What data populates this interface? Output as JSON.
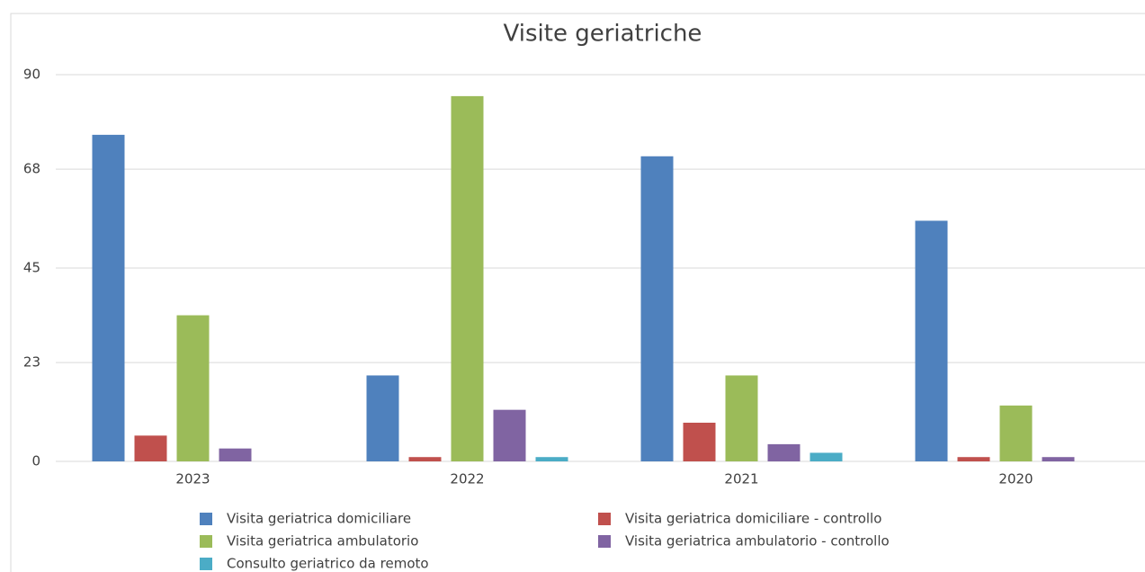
{
  "chart_data": {
    "type": "bar",
    "title": "Visite geriatriche",
    "categories": [
      "2023",
      "2022",
      "2021",
      "2020"
    ],
    "series": [
      {
        "name": "Visita geriatrica domiciliare",
        "color": "#4f81bd",
        "values": [
          76,
          20,
          71,
          56
        ]
      },
      {
        "name": "Visita geriatrica domiciliare - controllo",
        "color": "#c0504d",
        "values": [
          6,
          1,
          9,
          1
        ]
      },
      {
        "name": "Visita geriatrica ambulatorio",
        "color": "#9bbb59",
        "values": [
          34,
          85,
          20,
          13
        ]
      },
      {
        "name": "Visita geriatrica ambulatorio - controllo",
        "color": "#8064a2",
        "values": [
          3,
          12,
          4,
          1
        ]
      },
      {
        "name": "Consulto geriatrico da remoto",
        "color": "#4bacc6",
        "values": [
          0,
          1,
          2,
          0
        ]
      }
    ],
    "ylim": [
      0,
      90
    ],
    "yticks": [
      0,
      23,
      45,
      68,
      90
    ],
    "grid": true
  }
}
